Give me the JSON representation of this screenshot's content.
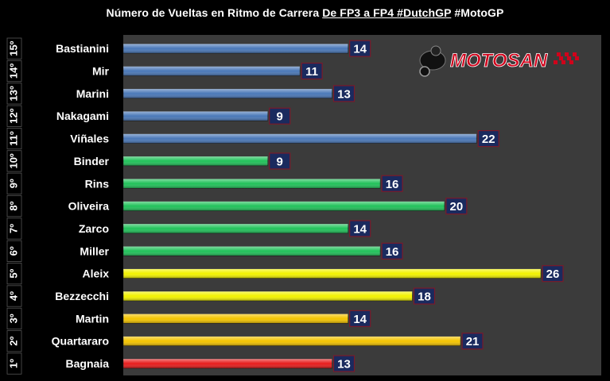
{
  "title": {
    "part1": "Número de Vueltas en Ritmo de Carrera",
    "part2": "De FP3 a FP4 #DutchGP",
    "part3": "#MotoGP"
  },
  "logo": {
    "text": "MOTOSAN",
    "accent": "#d0021b"
  },
  "chart_data": {
    "type": "bar",
    "orientation": "horizontal",
    "categories": [
      "Bastianini",
      "Mir",
      "Marini",
      "Nakagami",
      "Viñales",
      "Binder",
      "Rins",
      "Oliveira",
      "Zarco",
      "Miller",
      "Aleix",
      "Bezzecchi",
      "Martin",
      "Quartararo",
      "Bagnaia"
    ],
    "ranks": [
      "15º",
      "14º",
      "13º",
      "12º",
      "11º",
      "10º",
      "9º",
      "8º",
      "7º",
      "6º",
      "5º",
      "4º",
      "3º",
      "2º",
      "1º"
    ],
    "values": [
      14,
      11,
      13,
      9,
      22,
      9,
      16,
      20,
      14,
      16,
      26,
      18,
      14,
      21,
      13
    ],
    "bar_colors": [
      "#4a78b8",
      "#4a78b8",
      "#4a78b8",
      "#4a78b8",
      "#4a78b8",
      "#21c25a",
      "#21c25a",
      "#21c25a",
      "#21c25a",
      "#21c25a",
      "#f2f200",
      "#f2f200",
      "#f4c400",
      "#f4c400",
      "#e81c1c"
    ],
    "xlim": [
      0,
      26
    ],
    "label_bg": "#1a2a5e",
    "label_border": "#7a1a2a"
  }
}
